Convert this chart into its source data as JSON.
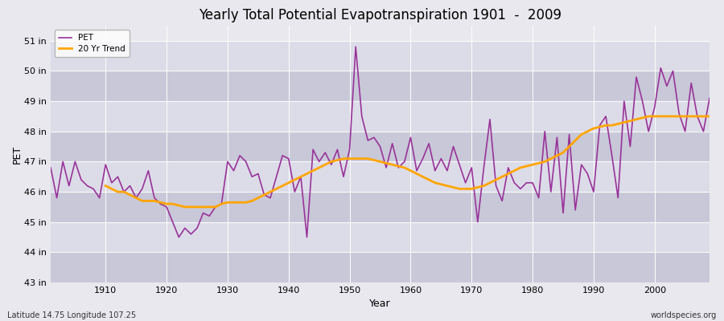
{
  "title": "Yearly Total Potential Evapotranspiration 1901  -  2009",
  "xlabel": "Year",
  "ylabel": "PET",
  "subtitle_left": "Latitude 14.75 Longitude 107.25",
  "subtitle_right": "worldspecies.org",
  "pet_color": "#993399",
  "trend_color": "#FFA500",
  "background_color": "#E8E8EE",
  "band_color_light": "#DCDCE8",
  "band_color_dark": "#C8C8D8",
  "ylim": [
    43,
    51.5
  ],
  "xlim": [
    1901,
    2009
  ],
  "yticks": [
    43,
    44,
    45,
    46,
    47,
    48,
    49,
    50,
    51
  ],
  "ytick_labels": [
    "43 in",
    "44 in",
    "45 in",
    "46 in",
    "47 in",
    "48 in",
    "49 in",
    "50 in",
    "51 in"
  ],
  "xticks": [
    1910,
    1920,
    1930,
    1940,
    1950,
    1960,
    1970,
    1980,
    1990,
    2000
  ],
  "years": [
    1901,
    1902,
    1903,
    1904,
    1905,
    1906,
    1907,
    1908,
    1909,
    1910,
    1911,
    1912,
    1913,
    1914,
    1915,
    1916,
    1917,
    1918,
    1919,
    1920,
    1921,
    1922,
    1923,
    1924,
    1925,
    1926,
    1927,
    1928,
    1929,
    1930,
    1931,
    1932,
    1933,
    1934,
    1935,
    1936,
    1937,
    1938,
    1939,
    1940,
    1941,
    1942,
    1943,
    1944,
    1945,
    1946,
    1947,
    1948,
    1949,
    1950,
    1951,
    1952,
    1953,
    1954,
    1955,
    1956,
    1957,
    1958,
    1959,
    1960,
    1961,
    1962,
    1963,
    1964,
    1965,
    1966,
    1967,
    1968,
    1969,
    1970,
    1971,
    1972,
    1973,
    1974,
    1975,
    1976,
    1977,
    1978,
    1979,
    1980,
    1981,
    1982,
    1983,
    1984,
    1985,
    1986,
    1987,
    1988,
    1989,
    1990,
    1991,
    1992,
    1993,
    1994,
    1995,
    1996,
    1997,
    1998,
    1999,
    2000,
    2001,
    2002,
    2003,
    2004,
    2005,
    2006,
    2007,
    2008,
    2009
  ],
  "pet_values": [
    46.8,
    45.8,
    47.0,
    46.2,
    47.0,
    46.4,
    46.2,
    46.1,
    45.8,
    46.9,
    46.3,
    46.5,
    46.0,
    46.2,
    45.8,
    46.1,
    46.7,
    45.8,
    45.6,
    45.5,
    45.0,
    44.5,
    44.8,
    44.6,
    44.8,
    45.3,
    45.2,
    45.5,
    45.6,
    47.0,
    46.7,
    47.2,
    47.0,
    46.5,
    46.6,
    45.9,
    45.8,
    46.5,
    47.2,
    47.1,
    46.0,
    46.5,
    44.5,
    47.4,
    47.0,
    47.3,
    46.9,
    47.4,
    46.5,
    47.4,
    50.8,
    48.5,
    47.7,
    47.8,
    47.5,
    46.8,
    47.6,
    46.8,
    47.0,
    47.8,
    46.7,
    47.1,
    47.6,
    46.7,
    47.1,
    46.7,
    47.5,
    46.9,
    46.3,
    46.8,
    45.0,
    46.8,
    48.4,
    46.2,
    45.7,
    46.8,
    46.3,
    46.1,
    46.3,
    46.3,
    45.8,
    48.0,
    46.0,
    47.8,
    45.3,
    47.9,
    45.4,
    46.9,
    46.6,
    46.0,
    48.2,
    48.5,
    47.2,
    45.8,
    49.0,
    47.5,
    49.8,
    49.0,
    48.0,
    48.8,
    50.1,
    49.5,
    50.0,
    48.6,
    48.0,
    49.6,
    48.5,
    48.0,
    49.1
  ],
  "trend_start_year": 1910,
  "trend_values": [
    46.2,
    46.1,
    46.0,
    46.0,
    45.9,
    45.8,
    45.7,
    45.7,
    45.7,
    45.65,
    45.6,
    45.6,
    45.55,
    45.5,
    45.5,
    45.5,
    45.5,
    45.5,
    45.5,
    45.6,
    45.65,
    45.65,
    45.65,
    45.65,
    45.7,
    45.8,
    45.9,
    46.0,
    46.1,
    46.2,
    46.3,
    46.4,
    46.5,
    46.6,
    46.7,
    46.8,
    46.9,
    47.0,
    47.05,
    47.1,
    47.1,
    47.1,
    47.1,
    47.1,
    47.05,
    47.0,
    46.95,
    46.9,
    46.85,
    46.8,
    46.7,
    46.6,
    46.5,
    46.4,
    46.3,
    46.25,
    46.2,
    46.15,
    46.1,
    46.1,
    46.1,
    46.15,
    46.2,
    46.3,
    46.4,
    46.5,
    46.6,
    46.7,
    46.8,
    46.85,
    46.9,
    46.95,
    47.0,
    47.1,
    47.2,
    47.3,
    47.5,
    47.7,
    47.9,
    48.0,
    48.1,
    48.15,
    48.2,
    48.2,
    48.25,
    48.3,
    48.35,
    48.4,
    48.45,
    48.5,
    48.5,
    48.5,
    48.5,
    48.5,
    48.5,
    48.5,
    48.5,
    48.5,
    48.5,
    48.5
  ]
}
